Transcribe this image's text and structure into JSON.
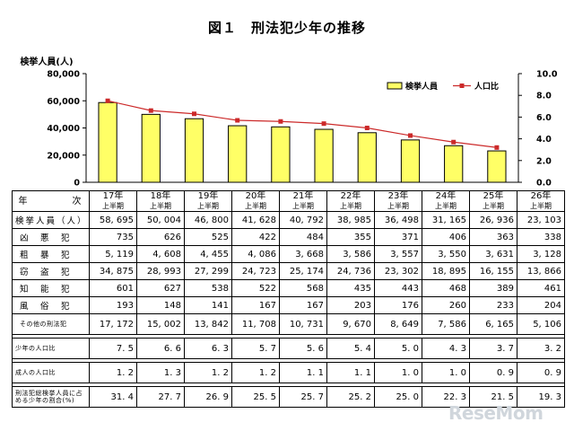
{
  "title": "図１　刑法犯少年の推移",
  "chart_data": {
    "type": "bar",
    "categories": [
      "17年",
      "18年",
      "19年",
      "20年",
      "21年",
      "22年",
      "23年",
      "24年",
      "25年",
      "26年"
    ],
    "category_sub": "上半期",
    "series": [
      {
        "name": "検挙人員",
        "type": "bar",
        "axis": "left",
        "values": [
          58695,
          50004,
          46800,
          41628,
          40792,
          38985,
          36498,
          31165,
          26936,
          23103
        ],
        "color": "#ffff66"
      },
      {
        "name": "人口比",
        "type": "line",
        "axis": "right",
        "values": [
          7.5,
          6.6,
          6.3,
          5.7,
          5.6,
          5.4,
          5.0,
          4.3,
          3.7,
          3.2
        ],
        "color": "#cc2a2a"
      }
    ],
    "ylabel_left": "検挙人員(人)",
    "ylim_left": [
      0,
      80000
    ],
    "yticks_left": [
      "0",
      "20,000",
      "40,000",
      "60,000",
      "80,000"
    ],
    "ylim_right": [
      0,
      10
    ],
    "yticks_right": [
      "0.0",
      "2.0",
      "4.0",
      "6.0",
      "8.0",
      "10.0"
    ],
    "legend_position": "top-right"
  },
  "table": {
    "header_label": "年　　　　次",
    "rows": [
      {
        "label": "検挙人員（人）",
        "values": [
          "58, 695",
          "50, 004",
          "46, 800",
          "41, 628",
          "40, 792",
          "38, 985",
          "36, 498",
          "31, 165",
          "26, 936",
          "23, 103"
        ]
      },
      {
        "label": "凶　悪　犯",
        "values": [
          "735",
          "626",
          "525",
          "422",
          "484",
          "355",
          "371",
          "406",
          "363",
          "338"
        ]
      },
      {
        "label": "粗　暴　犯",
        "values": [
          "5, 119",
          "4, 608",
          "4, 455",
          "4, 086",
          "3, 668",
          "3, 586",
          "3, 557",
          "3, 550",
          "3, 631",
          "3, 128"
        ]
      },
      {
        "label": "窃　盗　犯",
        "values": [
          "34, 875",
          "28, 993",
          "27, 299",
          "24, 723",
          "25, 174",
          "24, 736",
          "23, 302",
          "18, 895",
          "16, 155",
          "13, 866"
        ]
      },
      {
        "label": "知　能　犯",
        "values": [
          "601",
          "627",
          "538",
          "522",
          "568",
          "435",
          "443",
          "468",
          "389",
          "461"
        ]
      },
      {
        "label": "風　俗　犯",
        "values": [
          "193",
          "148",
          "141",
          "167",
          "167",
          "203",
          "176",
          "260",
          "233",
          "204"
        ]
      },
      {
        "label": "その他の刑法犯",
        "values": [
          "17, 172",
          "15, 002",
          "13, 842",
          "11, 708",
          "10, 731",
          "9, 670",
          "8, 649",
          "7, 586",
          "6, 165",
          "5, 106"
        ]
      },
      {
        "label": "少年の人口比",
        "values": [
          "7. 5",
          "6. 6",
          "6. 3",
          "5. 7",
          "5. 6",
          "5. 4",
          "5. 0",
          "4. 3",
          "3. 7",
          "3. 2"
        ]
      },
      {
        "label": "成人の人口比",
        "values": [
          "1. 2",
          "1. 3",
          "1. 2",
          "1. 2",
          "1. 1",
          "1. 1",
          "1. 0",
          "1. 0",
          "0. 9",
          "0. 9"
        ]
      },
      {
        "label": "刑法犯総検挙人員に占める少年の割合(%)",
        "values": [
          "31. 4",
          "27. 7",
          "26. 9",
          "25. 5",
          "25. 7",
          "25. 2",
          "25. 0",
          "22. 3",
          "21. 5",
          "19. 3"
        ]
      }
    ]
  },
  "watermark": "ReseMom"
}
